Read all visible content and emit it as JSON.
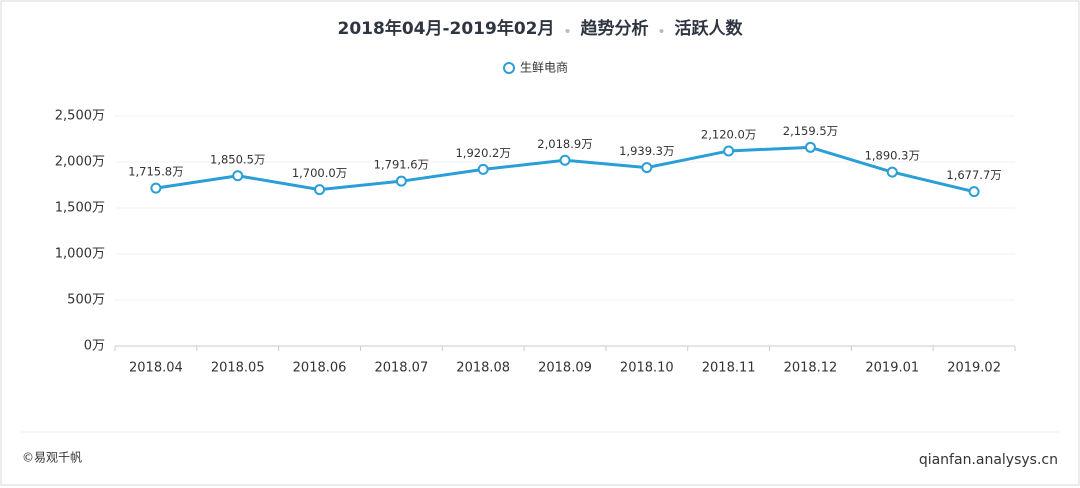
{
  "chart_data": {
    "type": "line",
    "title": [
      "2018年04月-2019年02月",
      "趋势分析",
      "活跃人数"
    ],
    "categories": [
      "2018.04",
      "2018.05",
      "2018.06",
      "2018.07",
      "2018.08",
      "2018.09",
      "2018.10",
      "2018.11",
      "2018.12",
      "2019.01",
      "2019.02"
    ],
    "series": [
      {
        "name": "生鲜电商",
        "color": "#2a9ed6",
        "values": [
          1715.8,
          1850.5,
          1700.0,
          1791.6,
          1920.2,
          2018.9,
          1939.3,
          2120.0,
          2159.5,
          1890.3,
          1677.7
        ],
        "value_labels": [
          "1,715.8万",
          "1,850.5万",
          "1,700.0万",
          "1,791.6万",
          "1,920.2万",
          "2,018.9万",
          "1,939.3万",
          "2,120.0万",
          "2,159.5万",
          "1,890.3万",
          "1,677.7万"
        ]
      }
    ],
    "ylim": [
      0,
      2500
    ],
    "yticks": [
      {
        "value": 0,
        "label": "0万"
      },
      {
        "value": 500,
        "label": "500万"
      },
      {
        "value": 1000,
        "label": "1,000万"
      },
      {
        "value": 1500,
        "label": "1,500万"
      },
      {
        "value": 2000,
        "label": "2,000万"
      },
      {
        "value": 2500,
        "label": "2,500万"
      }
    ],
    "grid": true,
    "legend": "top",
    "source": "©易观千帆",
    "website": "qianfan.analysys.cn"
  }
}
